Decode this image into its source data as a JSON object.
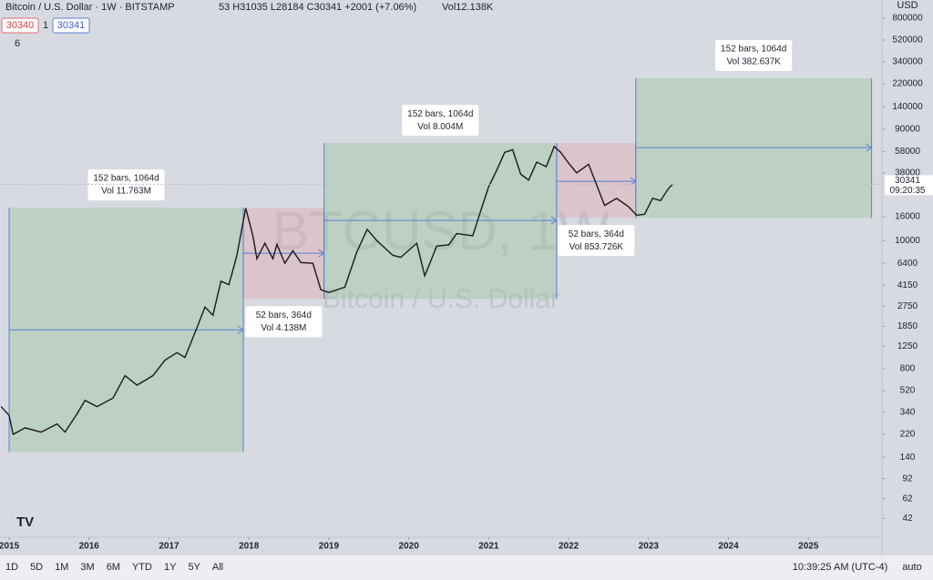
{
  "header": {
    "symbol": "Bitcoin / U.S. Dollar · 1W · BITSTAMP",
    "ohlc": "53 H31035 L28184 C30341 +2001 (+7.06%)",
    "volume": "Vol12.138K",
    "sell": "30340",
    "spread": "1",
    "buy": "30341",
    "indicators": "6"
  },
  "watermark": {
    "symbol": "BTCUSD, 1W",
    "description": "Bitcoin / U.S. Dollar"
  },
  "chart_data": {
    "type": "line",
    "log_scale": true,
    "color": "#1a1a1a",
    "currency": "USD",
    "x": [
      2014.9,
      2015.0,
      2015.05,
      2015.2,
      2015.4,
      2015.6,
      2015.7,
      2015.85,
      2015.95,
      2016.1,
      2016.3,
      2016.45,
      2016.6,
      2016.8,
      2016.95,
      2017.1,
      2017.2,
      2017.35,
      2017.45,
      2017.55,
      2017.65,
      2017.75,
      2017.85,
      2017.96,
      2018.05,
      2018.1,
      2018.2,
      2018.3,
      2018.35,
      2018.45,
      2018.55,
      2018.65,
      2018.8,
      2018.9,
      2019.0,
      2019.2,
      2019.35,
      2019.48,
      2019.6,
      2019.8,
      2019.9,
      2020.1,
      2020.2,
      2020.35,
      2020.5,
      2020.6,
      2020.8,
      2020.9,
      2021.0,
      2021.1,
      2021.2,
      2021.3,
      2021.4,
      2021.5,
      2021.6,
      2021.72,
      2021.82,
      2021.9,
      2022.0,
      2022.1,
      2022.25,
      2022.35,
      2022.45,
      2022.6,
      2022.75,
      2022.85,
      2022.95,
      2023.05,
      2023.15,
      2023.25,
      2023.3
    ],
    "values": [
      380,
      320,
      220,
      250,
      230,
      270,
      230,
      330,
      430,
      380,
      450,
      700,
      580,
      700,
      950,
      1100,
      1000,
      1800,
      2700,
      2300,
      4500,
      4200,
      7500,
      19000,
      11000,
      7000,
      9500,
      7000,
      9300,
      6400,
      8200,
      6500,
      6400,
      3800,
      3600,
      4000,
      8000,
      12500,
      10000,
      7500,
      7200,
      9500,
      5000,
      9000,
      9200,
      11500,
      11000,
      18000,
      29000,
      40000,
      57000,
      60000,
      37000,
      33000,
      47000,
      43000,
      64000,
      57000,
      46000,
      38000,
      45000,
      30000,
      20000,
      23000,
      19500,
      16500,
      16800,
      23000,
      22000,
      28000,
      30341
    ],
    "xlim": [
      2014.886,
      2025.92
    ],
    "xticks": [
      2015,
      2016,
      2017,
      2018,
      2019,
      2020,
      2021,
      2022,
      2023,
      2024,
      2025
    ],
    "ylim": [
      29,
      1146000
    ],
    "yticks": [
      800000,
      520000,
      340000,
      220000,
      140000,
      90000,
      58000,
      38000,
      16000,
      10000,
      6400,
      4150,
      2750,
      1850,
      1250,
      800,
      520,
      340,
      220,
      140,
      92,
      62,
      42
    ],
    "last_price": 30341,
    "countdown": "09:20:35",
    "drawings": [
      {
        "kind": "range",
        "x": [
          2015.0,
          2017.93
        ],
        "y": [
          156,
          19150
        ],
        "arrow": 1725,
        "color": "#9cc4a0",
        "label_position": "above",
        "bars": "152 bars, 1064d",
        "vol": "Vol 11.763M"
      },
      {
        "kind": "range",
        "x": [
          2017.93,
          2018.94
        ],
        "y": [
          3175,
          19150
        ],
        "arrow": 7800,
        "color": "#e0a9b4",
        "label_position": "below",
        "bars": "52 bars, 364d",
        "vol": "Vol 4.138M"
      },
      {
        "kind": "range",
        "x": [
          2018.94,
          2021.85
        ],
        "y": [
          3175,
          68400
        ],
        "arrow": 14900,
        "color": "#9cc4a0",
        "label_position": "above",
        "bars": "152 bars, 1064d",
        "vol": "Vol 8.004M"
      },
      {
        "kind": "range",
        "x": [
          2021.85,
          2022.84
        ],
        "y": [
          15700,
          68400
        ],
        "arrow": 32200,
        "color": "#e0a9b4",
        "label_position": "below",
        "bars": "52 bars, 364d",
        "vol": "Vol 853.726K"
      },
      {
        "kind": "range",
        "x": [
          2022.84,
          2025.79
        ],
        "y": [
          15700,
          245000
        ],
        "arrow": 62500,
        "color": "#9cc4a0",
        "label_position": "above",
        "bars": "152 bars, 1064d",
        "vol": "Vol 382.637K"
      }
    ]
  },
  "toolbar": {
    "ranges": [
      "1D",
      "5D",
      "1M",
      "3M",
      "6M",
      "YTD",
      "1Y",
      "5Y",
      "All"
    ],
    "clock": "10:39:25 AM (UTC-4)",
    "scale": "auto"
  }
}
